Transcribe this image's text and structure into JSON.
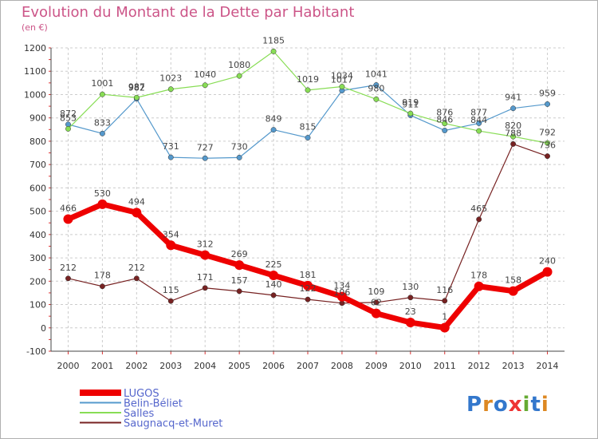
{
  "chart_data": {
    "type": "line",
    "title": "Evolution du Montant de la Dette par Habitant",
    "subtitle": "(en €)",
    "x": [
      "2000",
      "2001",
      "2002",
      "2003",
      "2004",
      "2005",
      "2006",
      "2007",
      "2008",
      "2009",
      "2010",
      "2011",
      "2012",
      "2013",
      "2014"
    ],
    "ylim": [
      -100,
      1200
    ],
    "yticks": [
      -100,
      0,
      100,
      200,
      300,
      400,
      500,
      600,
      700,
      800,
      900,
      1000,
      1100,
      1200
    ],
    "grid": true,
    "legend_position": "bottom-left",
    "series": [
      {
        "name": "LUGOS",
        "color": "#ee0000",
        "values": [
          466,
          530,
          494,
          354,
          312,
          269,
          225,
          181,
          134,
          62,
          23,
          1,
          178,
          158,
          240
        ]
      },
      {
        "name": "Belin-Béliet",
        "color": "#5599cc",
        "values": [
          872,
          833,
          982,
          731,
          727,
          730,
          849,
          815,
          1017,
          1041,
          911,
          846,
          877,
          941,
          959
        ]
      },
      {
        "name": "Salles",
        "color": "#88dd55",
        "values": [
          853,
          1001,
          987,
          1023,
          1040,
          1080,
          1185,
          1019,
          1034,
          980,
          919,
          876,
          844,
          820,
          792
        ]
      },
      {
        "name": "Saugnacq-et-Muret",
        "color": "#772222",
        "values": [
          212,
          178,
          212,
          115,
          171,
          157,
          140,
          122,
          106,
          109,
          130,
          116,
          465,
          788,
          736
        ]
      }
    ]
  },
  "logo": {
    "letters": [
      "P",
      "r",
      "o",
      "x",
      "i",
      "t",
      "i"
    ],
    "colors": [
      "#3377cc",
      "#dd8822",
      "#3377cc",
      "#ee3333",
      "#66aa33",
      "#3377cc",
      "#dd8822"
    ]
  }
}
